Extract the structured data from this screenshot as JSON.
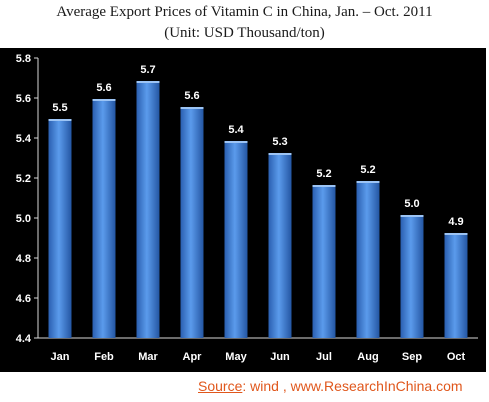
{
  "chart_data": {
    "type": "bar",
    "title": "Average Export Prices of Vitamin C in China, Jan. – Oct. 2011",
    "subtitle": "(Unit: USD Thousand/ton)",
    "categories": [
      "Jan",
      "Feb",
      "Mar",
      "Apr",
      "May",
      "Jun",
      "Jul",
      "Aug",
      "Sep",
      "Oct"
    ],
    "values": [
      5.49,
      5.59,
      5.68,
      5.55,
      5.38,
      5.32,
      5.16,
      5.18,
      5.01,
      4.92
    ],
    "value_labels": [
      "5.5",
      "5.6",
      "5.7",
      "5.6",
      "5.4",
      "5.3",
      "5.2",
      "5.2",
      "5.0",
      "4.9"
    ],
    "ylim": [
      4.4,
      5.8
    ],
    "yticks": [
      "4.4",
      "4.6",
      "4.8",
      "5.0",
      "5.2",
      "5.4",
      "5.6",
      "5.8"
    ],
    "grid": false,
    "colors": {
      "background": "#000000",
      "bar": "#3f7fd6",
      "text": "#ffffff"
    }
  },
  "source": {
    "label": "Source",
    "text": ":   wind , www.ResearchInChina.com"
  }
}
